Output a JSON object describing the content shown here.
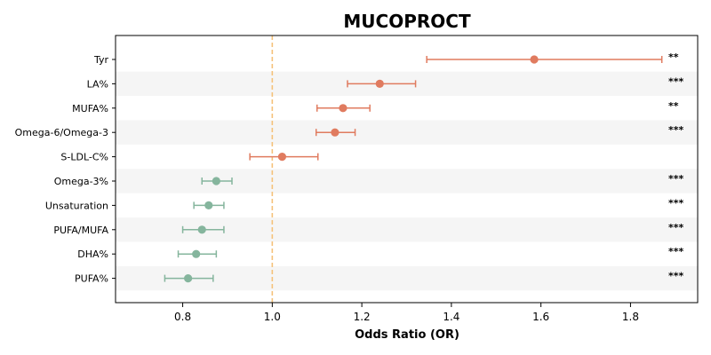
{
  "chart_data": {
    "type": "forest",
    "title": "MUCOPROCT",
    "xlabel": "Odds Ratio (OR)",
    "xlim": [
      0.65,
      1.95
    ],
    "xticks": [
      0.8,
      1.0,
      1.2,
      1.4,
      1.6,
      1.8
    ],
    "reference_line": 1.0,
    "grid": false,
    "colors": {
      "risk": "#e07b5f",
      "protective": "#85b59d",
      "reference": "#f5c27a",
      "band": "#f5f5f5"
    },
    "rows": [
      {
        "label": "Tyr",
        "or": 1.585,
        "low": 1.345,
        "high": 1.87,
        "sig": "**",
        "group": "risk"
      },
      {
        "label": "LA%",
        "or": 1.24,
        "low": 1.168,
        "high": 1.32,
        "sig": "***",
        "group": "risk"
      },
      {
        "label": "MUFA%",
        "or": 1.158,
        "low": 1.1,
        "high": 1.218,
        "sig": "**",
        "group": "risk"
      },
      {
        "label": "Omega-6/Omega-3",
        "or": 1.14,
        "low": 1.098,
        "high": 1.185,
        "sig": "***",
        "group": "risk"
      },
      {
        "label": "S-LDL-C%",
        "or": 1.022,
        "low": 0.95,
        "high": 1.102,
        "sig": "",
        "group": "risk"
      },
      {
        "label": "Omega-3%",
        "or": 0.875,
        "low": 0.843,
        "high": 0.91,
        "sig": "***",
        "group": "protective"
      },
      {
        "label": "Unsaturation",
        "or": 0.858,
        "low": 0.825,
        "high": 0.892,
        "sig": "***",
        "group": "protective"
      },
      {
        "label": "PUFA/MUFA",
        "or": 0.843,
        "low": 0.8,
        "high": 0.892,
        "sig": "***",
        "group": "protective"
      },
      {
        "label": "DHA%",
        "or": 0.83,
        "low": 0.79,
        "high": 0.875,
        "sig": "***",
        "group": "protective"
      },
      {
        "label": "PUFA%",
        "or": 0.812,
        "low": 0.76,
        "high": 0.868,
        "sig": "***",
        "group": "protective"
      }
    ]
  }
}
